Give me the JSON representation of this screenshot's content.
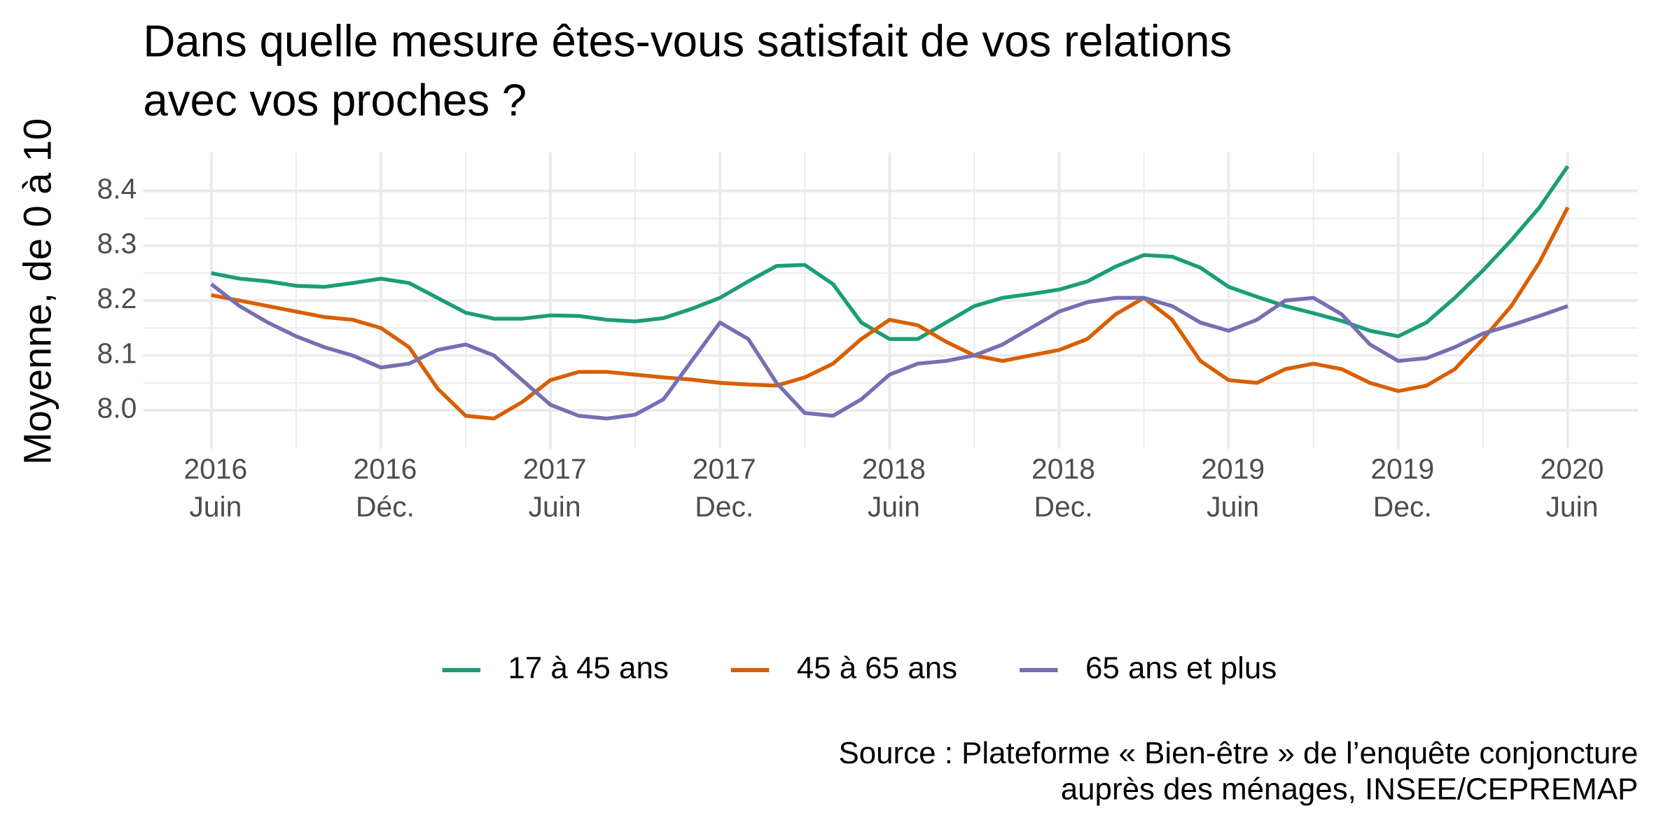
{
  "chart_data": {
    "type": "line",
    "title": "Dans quelle mesure êtes-vous satisfait de vos relations\navec vos proches ?",
    "y_label": "Moyenne, de 0 à 10",
    "source": "Source : Plateforme « Bien-être » de l’enquête conjoncture\nauprès des ménages, INSEE/CEPREMAP",
    "x": [
      "2016-06",
      "2016-07",
      "2016-08",
      "2016-09",
      "2016-10",
      "2016-11",
      "2016-12",
      "2017-01",
      "2017-02",
      "2017-03",
      "2017-04",
      "2017-05",
      "2017-06",
      "2017-07",
      "2017-08",
      "2017-09",
      "2017-10",
      "2017-11",
      "2017-12",
      "2018-01",
      "2018-02",
      "2018-03",
      "2018-04",
      "2018-05",
      "2018-06",
      "2018-07",
      "2018-08",
      "2018-09",
      "2018-10",
      "2018-11",
      "2018-12",
      "2019-01",
      "2019-02",
      "2019-03",
      "2019-04",
      "2019-05",
      "2019-06",
      "2019-07",
      "2019-08",
      "2019-09",
      "2019-10",
      "2019-11",
      "2019-12",
      "2020-01",
      "2020-02",
      "2020-03",
      "2020-04",
      "2020-05",
      "2020-06"
    ],
    "series": [
      {
        "name": "17 à 45 ans",
        "color": "#1b9e77",
        "values": [
          8.25,
          8.24,
          8.235,
          8.227,
          8.225,
          8.232,
          8.24,
          8.232,
          8.205,
          8.178,
          8.167,
          8.167,
          8.173,
          8.172,
          8.165,
          8.162,
          8.168,
          8.185,
          8.205,
          8.235,
          8.263,
          8.265,
          8.23,
          8.16,
          8.13,
          8.13,
          8.16,
          8.19,
          8.205,
          8.212,
          8.22,
          8.235,
          8.262,
          8.283,
          8.28,
          8.26,
          8.225,
          8.207,
          8.19,
          8.177,
          8.163,
          8.145,
          8.135,
          8.16,
          8.205,
          8.255,
          8.31,
          8.37,
          8.445
        ]
      },
      {
        "name": "45 à 65 ans",
        "color": "#d95f02",
        "values": [
          8.21,
          8.2,
          8.19,
          8.18,
          8.17,
          8.165,
          8.15,
          8.115,
          8.04,
          7.99,
          7.985,
          8.015,
          8.055,
          8.07,
          8.07,
          8.065,
          8.06,
          8.056,
          8.05,
          8.047,
          8.045,
          8.06,
          8.085,
          8.13,
          8.165,
          8.155,
          8.125,
          8.1,
          8.09,
          8.1,
          8.11,
          8.13,
          8.175,
          8.205,
          8.165,
          8.09,
          8.055,
          8.05,
          8.075,
          8.085,
          8.075,
          8.05,
          8.035,
          8.045,
          8.075,
          8.13,
          8.19,
          8.27,
          8.37
        ]
      },
      {
        "name": "65 ans et plus",
        "color": "#7570b3",
        "values": [
          8.23,
          8.19,
          8.16,
          8.135,
          8.115,
          8.1,
          8.078,
          8.085,
          8.11,
          8.12,
          8.1,
          8.055,
          8.01,
          7.99,
          7.985,
          7.992,
          8.02,
          8.09,
          8.16,
          8.13,
          8.05,
          7.995,
          7.99,
          8.02,
          8.065,
          8.085,
          8.09,
          8.1,
          8.12,
          8.15,
          8.18,
          8.197,
          8.205,
          8.205,
          8.19,
          8.16,
          8.145,
          8.165,
          8.2,
          8.205,
          8.175,
          8.12,
          8.09,
          8.095,
          8.115,
          8.14,
          8.155,
          8.172,
          8.19
        ]
      }
    ],
    "xlim": [
      "2016-04",
      "2020-08"
    ],
    "xticks": [
      {
        "value": "2016-06",
        "label": "2016\nJuin"
      },
      {
        "value": "2016-12",
        "label": "2016\nDéc."
      },
      {
        "value": "2017-06",
        "label": "2017\nJuin"
      },
      {
        "value": "2017-12",
        "label": "2017\nDec."
      },
      {
        "value": "2018-06",
        "label": "2018\nJuin"
      },
      {
        "value": "2018-12",
        "label": "2018\nDec."
      },
      {
        "value": "2019-06",
        "label": "2019\nJuin"
      },
      {
        "value": "2019-12",
        "label": "2019\nDec."
      },
      {
        "value": "2020-06",
        "label": "2020\nJuin"
      }
    ],
    "ylim": [
      7.93,
      8.47
    ],
    "yticks": [
      {
        "value": 8,
        "label": "8.0"
      },
      8.1,
      8.2,
      8.3,
      8.4
    ],
    "grid": true,
    "legend": "bottom"
  }
}
